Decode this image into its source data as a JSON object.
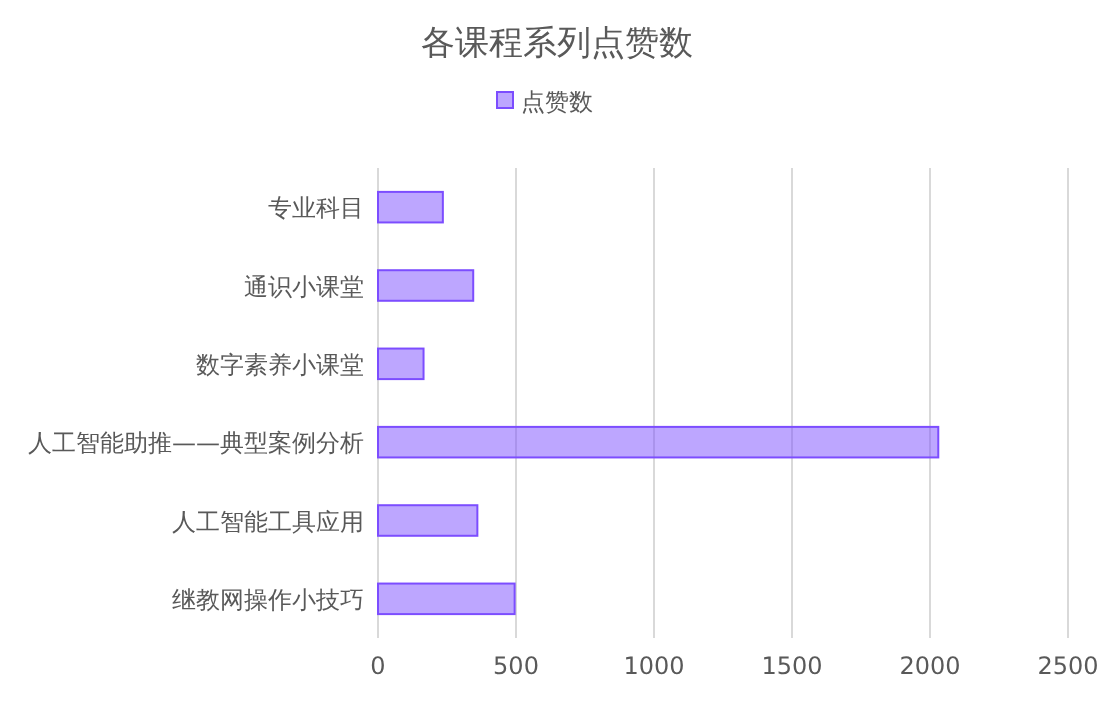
{
  "chart_data": {
    "type": "bar",
    "orientation": "horizontal",
    "title": "各课程系列点赞数",
    "categories": [
      "专业科目",
      "通识小课堂",
      "数字素养小课堂",
      "人工智能助推——典型案例分析",
      "人工智能工具应用",
      "继教网操作小技巧"
    ],
    "series": [
      {
        "name": "点赞数",
        "color": "#7c4dff",
        "values": [
          235,
          345,
          165,
          2030,
          360,
          495
        ]
      }
    ],
    "xlim": [
      0,
      2500
    ],
    "xticks": [
      0,
      500,
      1000,
      1500,
      2000,
      2500
    ],
    "grid": "x",
    "legend": "top"
  }
}
